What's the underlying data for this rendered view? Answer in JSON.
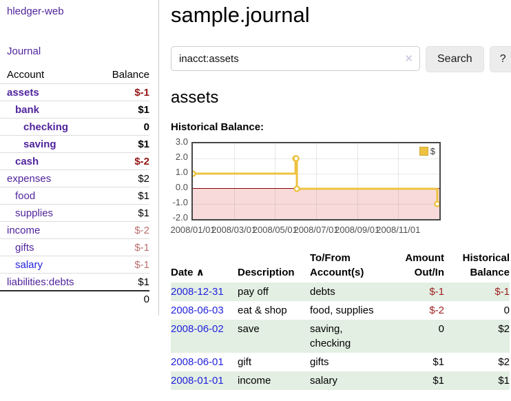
{
  "app": {
    "title": "hledger-web",
    "nav_journal": "Journal"
  },
  "colors": {
    "link_purple": "#50249c",
    "link_blue": "#2222dd",
    "negative_strong": "#941414",
    "negative_muted": "#bb6f6f",
    "table_negative": "#9e2222",
    "row_shade_green": "#e3efe3",
    "series_gold": "#edc240",
    "negative_region_pink": "#f8dada",
    "zero_line_red": "#8b0000"
  },
  "sidebar": {
    "header_account": "Account",
    "header_balance": "Balance",
    "accounts": [
      {
        "name": "assets",
        "balance": "$-1",
        "depth": 0,
        "bold": true,
        "balance_style": "neg"
      },
      {
        "name": "bank",
        "balance": "$1",
        "depth": 1,
        "bold": true,
        "balance_style": ""
      },
      {
        "name": "checking",
        "balance": "0",
        "depth": 2,
        "bold": true,
        "balance_style": ""
      },
      {
        "name": "saving",
        "balance": "$1",
        "depth": 2,
        "bold": true,
        "balance_style": ""
      },
      {
        "name": "cash",
        "balance": "$-2",
        "depth": 1,
        "bold": true,
        "balance_style": "neg"
      },
      {
        "name": "expenses",
        "balance": "$2",
        "depth": 0,
        "bold": false,
        "balance_style": ""
      },
      {
        "name": "food",
        "balance": "$1",
        "depth": 1,
        "bold": false,
        "balance_style": ""
      },
      {
        "name": "supplies",
        "balance": "$1",
        "depth": 1,
        "bold": false,
        "balance_style": ""
      },
      {
        "name": "income",
        "balance": "$-2",
        "depth": 0,
        "bold": false,
        "balance_style": "negmuted"
      },
      {
        "name": "gifts",
        "balance": "$-1",
        "depth": 1,
        "bold": false,
        "balance_style": "negmuted"
      },
      {
        "name": "salary",
        "balance": "$-1",
        "depth": 1,
        "bold": false,
        "balance_style": "negmuted",
        "link_color": "blue"
      },
      {
        "name": "liabilities:debts",
        "balance": "$1",
        "depth": 0,
        "bold": false,
        "balance_style": ""
      }
    ],
    "total": "0"
  },
  "main": {
    "title": "sample.journal",
    "search": {
      "value": "inacct:assets",
      "clear_icon": "✕",
      "button_label": "Search",
      "help_label": "?"
    },
    "account_heading": "assets"
  },
  "chart_data": {
    "type": "line",
    "step": true,
    "title": "Historical Balance:",
    "legend": {
      "label": "$",
      "position": "top-right",
      "color": "#edc240"
    },
    "series": [
      {
        "name": "$",
        "color": "#edc240",
        "points": [
          {
            "date": "2008-01-01",
            "day": 0,
            "value": 1
          },
          {
            "date": "2008-06-01",
            "day": 152,
            "value": 2
          },
          {
            "date": "2008-06-02",
            "day": 153,
            "value": 2
          },
          {
            "date": "2008-06-03",
            "day": 154,
            "value": 0
          },
          {
            "date": "2008-12-31",
            "day": 365,
            "value": -1
          }
        ]
      }
    ],
    "xlim_days": [
      0,
      365
    ],
    "ylim": [
      -2,
      3
    ],
    "yticks": [
      {
        "label": "3.0",
        "value": 3
      },
      {
        "label": "2.0",
        "value": 2
      },
      {
        "label": "1.0",
        "value": 1
      },
      {
        "label": "0.0",
        "value": 0
      },
      {
        "label": "-1.0",
        "value": -1
      },
      {
        "label": "-2.0",
        "value": -2
      }
    ],
    "xticks": [
      {
        "label": "2008/01/01",
        "month": 0
      },
      {
        "label": "2008/03/01",
        "month": 2
      },
      {
        "label": "2008/05/01",
        "month": 4
      },
      {
        "label": "2008/07/01",
        "month": 6
      },
      {
        "label": "2008/09/01",
        "month": 8
      },
      {
        "label": "2008/11/01",
        "month": 10
      }
    ],
    "grid": true,
    "zero_line": 0
  },
  "register": {
    "headers": [
      {
        "lines": [
          "Date"
        ],
        "sort_indicator": "∧",
        "align": "left"
      },
      {
        "lines": [
          "Description"
        ],
        "align": "left"
      },
      {
        "lines": [
          "To/From",
          "Account(s)"
        ],
        "align": "left"
      },
      {
        "lines": [
          "Amount",
          "Out/In"
        ],
        "align": "right"
      },
      {
        "lines": [
          "Historical",
          "Balance"
        ],
        "align": "right"
      }
    ],
    "rows": [
      {
        "date": "2008-12-31",
        "description": "pay off",
        "accounts": "debts",
        "amount": "$-1",
        "amount_negative": true,
        "balance": "$-1",
        "balance_negative": true,
        "shaded": true
      },
      {
        "date": "2008-06-03",
        "description": "eat & shop",
        "accounts": "food, supplies",
        "amount": "$-2",
        "amount_negative": true,
        "balance": "0",
        "balance_negative": false,
        "shaded": false
      },
      {
        "date": "2008-06-02",
        "description": "save",
        "accounts": "saving,\nchecking",
        "amount": "0",
        "amount_negative": false,
        "balance": "$2",
        "balance_negative": false,
        "shaded": true
      },
      {
        "date": "2008-06-01",
        "description": "gift",
        "accounts": "gifts",
        "amount": "$1",
        "amount_negative": false,
        "balance": "$2",
        "balance_negative": false,
        "shaded": false
      },
      {
        "date": "2008-01-01",
        "description": "income",
        "accounts": "salary",
        "amount": "$1",
        "amount_negative": false,
        "balance": "$1",
        "balance_negative": false,
        "shaded": true
      }
    ]
  }
}
